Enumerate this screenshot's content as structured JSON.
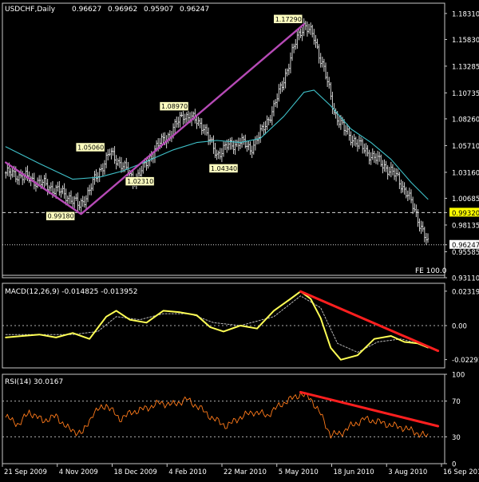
{
  "colors": {
    "background": "#000000",
    "frame": "#c8c8c8",
    "bar": "#e8e8e8",
    "moving_average": "#3fc1c9",
    "trendline_purple": "#b64ab6",
    "macd_main": "#ffff55",
    "macd_signal": "#b8b8b8",
    "rsi_line": "#ff7a1a",
    "divergence": "#ff1f1f",
    "label_bg": "#ffffc0",
    "label_fg": "#000000",
    "grid_dotted": "#b0b0b0"
  },
  "chart_data": [
    {
      "type": "ohlc",
      "title": "USDCHF,Daily",
      "header_values": [
        "0.96627",
        "0.96962",
        "0.95907",
        "0.96247"
      ],
      "ylim": [
        0.9311,
        1.1929
      ],
      "y_tick_labels": [
        "1.18310",
        "1.15830",
        "1.13285",
        "1.10735",
        "1.08260",
        "1.05710",
        "1.03160",
        "1.00685",
        "0.98135",
        "0.95585",
        "0.93110"
      ],
      "x_tick_labels": [
        "21 Sep 2009",
        "4 Nov 2009",
        "18 Dec 2009",
        "4 Feb 2010",
        "22 Mar 2010",
        "5 May 2010",
        "18 Jun 2010",
        "3 Aug 2010",
        "16 Sep 2010"
      ],
      "series": [
        {
          "kind": "close_path",
          "points": [
            [
              0,
              1.031
            ],
            [
              10,
              1.028
            ],
            [
              20,
              1.022
            ],
            [
              30,
              1.015
            ],
            [
              38,
              1.008
            ],
            [
              44,
              0.999
            ],
            [
              48,
              1.009
            ],
            [
              56,
              1.033
            ],
            [
              62,
              1.05
            ],
            [
              70,
              1.038
            ],
            [
              76,
              1.024
            ],
            [
              82,
              1.035
            ],
            [
              90,
              1.056
            ],
            [
              98,
              1.068
            ],
            [
              106,
              1.087
            ],
            [
              112,
              1.082
            ],
            [
              118,
              1.076
            ],
            [
              122,
              1.06
            ],
            [
              126,
              1.049
            ],
            [
              132,
              1.056
            ],
            [
              140,
              1.061
            ],
            [
              146,
              1.054
            ],
            [
              152,
              1.068
            ],
            [
              160,
              1.093
            ],
            [
              168,
              1.13
            ],
            [
              174,
              1.16
            ],
            [
              178,
              1.1729
            ],
            [
              184,
              1.16
            ],
            [
              190,
              1.13
            ],
            [
              196,
              1.09
            ],
            [
              202,
              1.072
            ],
            [
              210,
              1.059
            ],
            [
              218,
              1.048
            ],
            [
              226,
              1.038
            ],
            [
              234,
              1.026
            ],
            [
              240,
              1.01
            ],
            [
              244,
              0.995
            ],
            [
              248,
              0.98
            ],
            [
              252,
              0.9625
            ]
          ]
        },
        {
          "name": "",
          "kind": "moving_average",
          "points": [
            [
              0,
              1.056
            ],
            [
              20,
              1.04
            ],
            [
              40,
              1.025
            ],
            [
              56,
              1.027
            ],
            [
              70,
              1.033
            ],
            [
              84,
              1.042
            ],
            [
              100,
              1.053
            ],
            [
              114,
              1.06
            ],
            [
              126,
              1.062
            ],
            [
              140,
              1.06
            ],
            [
              152,
              1.064
            ],
            [
              166,
              1.085
            ],
            [
              178,
              1.108
            ],
            [
              184,
              1.11
            ],
            [
              194,
              1.095
            ],
            [
              206,
              1.073
            ],
            [
              218,
              1.06
            ],
            [
              230,
              1.044
            ],
            [
              242,
              1.022
            ],
            [
              252,
              1.006
            ]
          ]
        }
      ],
      "trendline": [
        [
          0,
          1.041
        ],
        [
          45,
          0.9918
        ],
        [
          178,
          1.1729
        ]
      ],
      "price_labels": [
        {
          "text": "1.17290",
          "x": 178,
          "y": 1.1729,
          "side": "left"
        },
        {
          "text": "1.08970",
          "x": 110,
          "y": 1.0897,
          "side": "left"
        },
        {
          "text": "1.05060",
          "x": 60,
          "y": 1.0506,
          "side": "left"
        },
        {
          "text": "1.04340",
          "x": 130,
          "y": 1.0434,
          "side": "below"
        },
        {
          "text": "1.02310",
          "x": 70,
          "y": 1.0231,
          "side": "right"
        },
        {
          "text": "0.99180",
          "x": 45,
          "y": 0.9918,
          "side": "left"
        }
      ],
      "horizontal_levels": [
        {
          "value": 0.9932,
          "label": "0.99320",
          "style": "dashed"
        },
        {
          "value": 0.9625,
          "label": "0.96247",
          "style": "dotted"
        }
      ],
      "fe_label": "FE 100.0"
    },
    {
      "type": "line",
      "title": "MACD(12,26,9) -0.014825 -0.013952",
      "ylim": [
        -0.0285,
        0.0285
      ],
      "y_tick_labels": [
        "0.023194",
        "0.00",
        "-0.02291"
      ],
      "series": [
        {
          "name": "main",
          "points": [
            [
              0,
              -0.008
            ],
            [
              10,
              -0.007
            ],
            [
              20,
              -0.006
            ],
            [
              30,
              -0.008
            ],
            [
              40,
              -0.005
            ],
            [
              50,
              -0.009
            ],
            [
              60,
              0.006
            ],
            [
              66,
              0.01
            ],
            [
              74,
              0.004
            ],
            [
              84,
              0.002
            ],
            [
              94,
              0.01
            ],
            [
              104,
              0.009
            ],
            [
              114,
              0.007
            ],
            [
              122,
              -0.001
            ],
            [
              130,
              -0.004
            ],
            [
              140,
              0.0
            ],
            [
              150,
              -0.002
            ],
            [
              160,
              0.01
            ],
            [
              170,
              0.018
            ],
            [
              176,
              0.023
            ],
            [
              182,
              0.018
            ],
            [
              188,
              0.005
            ],
            [
              194,
              -0.015
            ],
            [
              200,
              -0.023
            ],
            [
              210,
              -0.02
            ],
            [
              220,
              -0.009
            ],
            [
              230,
              -0.007
            ],
            [
              238,
              -0.011
            ],
            [
              246,
              -0.012
            ],
            [
              252,
              -0.0148
            ]
          ]
        },
        {
          "name": "signal",
          "points": [
            [
              0,
              -0.006
            ],
            [
              20,
              -0.006
            ],
            [
              40,
              -0.006
            ],
            [
              55,
              -0.004
            ],
            [
              66,
              0.006
            ],
            [
              80,
              0.004
            ],
            [
              94,
              0.008
            ],
            [
              110,
              0.008
            ],
            [
              124,
              0.002
            ],
            [
              140,
              0.0
            ],
            [
              160,
              0.006
            ],
            [
              176,
              0.02
            ],
            [
              188,
              0.012
            ],
            [
              198,
              -0.012
            ],
            [
              210,
              -0.018
            ],
            [
              222,
              -0.011
            ],
            [
              236,
              -0.009
            ],
            [
              252,
              -0.014
            ]
          ]
        }
      ],
      "divergence_line": [
        [
          176,
          0.023
        ],
        [
          258,
          -0.017
        ]
      ]
    },
    {
      "type": "line",
      "title": "RSI(14) 30.0167",
      "ylim": [
        0,
        100
      ],
      "y_tick_labels": [
        "100",
        "70",
        "30",
        "0"
      ],
      "levels": [
        70,
        30
      ],
      "series": [
        {
          "name": "",
          "points": [
            [
              0,
              52
            ],
            [
              8,
              44
            ],
            [
              14,
              58
            ],
            [
              22,
              48
            ],
            [
              30,
              53
            ],
            [
              38,
              38
            ],
            [
              46,
              34
            ],
            [
              52,
              56
            ],
            [
              60,
              66
            ],
            [
              68,
              50
            ],
            [
              76,
              58
            ],
            [
              84,
              62
            ],
            [
              92,
              68
            ],
            [
              100,
              66
            ],
            [
              108,
              72
            ],
            [
              116,
              62
            ],
            [
              124,
              50
            ],
            [
              132,
              42
            ],
            [
              140,
              52
            ],
            [
              148,
              58
            ],
            [
              156,
              54
            ],
            [
              164,
              66
            ],
            [
              172,
              74
            ],
            [
              176,
              78
            ],
            [
              182,
              73
            ],
            [
              188,
              55
            ],
            [
              194,
              32
            ],
            [
              200,
              34
            ],
            [
              206,
              42
            ],
            [
              214,
              50
            ],
            [
              222,
              47
            ],
            [
              230,
              43
            ],
            [
              238,
              40
            ],
            [
              246,
              34
            ],
            [
              252,
              30
            ]
          ]
        }
      ],
      "divergence_line": [
        [
          176,
          80
        ],
        [
          258,
          42
        ]
      ]
    }
  ]
}
